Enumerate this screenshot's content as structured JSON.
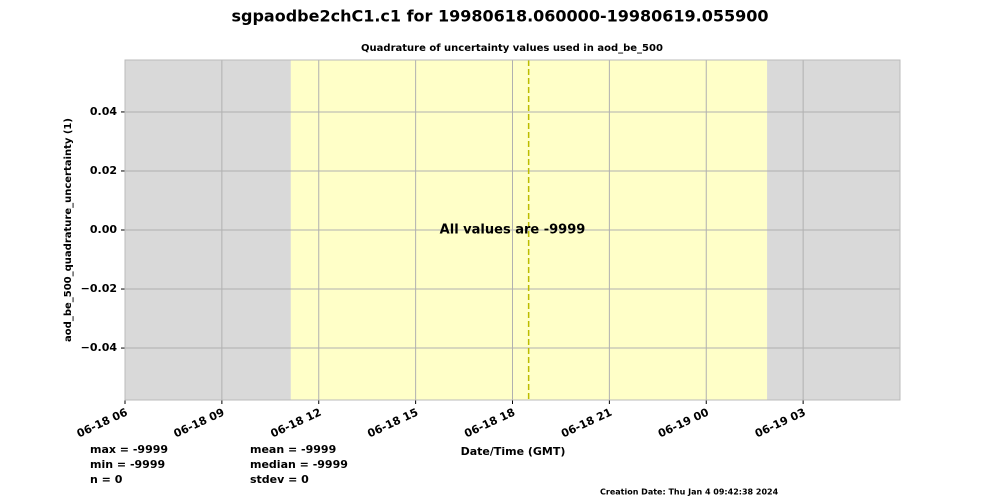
{
  "chart_data": {
    "type": "line",
    "title": "sgpaodbe2chC1.c1 for 19980618.060000-19980619.055900",
    "subtitle": "Quadrature of uncertainty values used in aod_be_500",
    "xlabel": "Date/Time (GMT)",
    "ylabel": "aod_be_500_quadrature_uncertainty (1)",
    "annotation": "All values are -9999",
    "series": [],
    "xlim": [
      "06-18 06:00",
      "06-19 06:00"
    ],
    "xticks": [
      {
        "value": "06-18 06:00",
        "label": "06-18 06"
      },
      {
        "value": "06-18 09:00",
        "label": "06-18 09"
      },
      {
        "value": "06-18 12:00",
        "label": "06-18 12"
      },
      {
        "value": "06-18 15:00",
        "label": "06-18 15"
      },
      {
        "value": "06-18 18:00",
        "label": "06-18 18"
      },
      {
        "value": "06-18 21:00",
        "label": "06-18 21"
      },
      {
        "value": "06-19 00:00",
        "label": "06-19 00"
      },
      {
        "value": "06-19 03:00",
        "label": "06-19 03"
      }
    ],
    "ylim": [
      -0.0576,
      0.0576
    ],
    "yticks": [
      {
        "value": -0.04,
        "label": "−0.04"
      },
      {
        "value": -0.02,
        "label": "−0.02"
      },
      {
        "value": 0,
        "label": "0.00"
      },
      0.02,
      0.04
    ],
    "grid": true,
    "background_color": "#d9d9d9",
    "shaded_regions": [
      {
        "start": "06-18 11:08",
        "end": "06-19 01:53",
        "color": "#ffffc8"
      }
    ],
    "vertical_lines": [
      {
        "x": "06-18 18:30",
        "color": "#bcbc00"
      }
    ],
    "stats": [
      [
        "max = -9999",
        "min = -9999",
        "n = 0"
      ],
      [
        "mean = -9999",
        "median = -9999",
        "stdev = 0"
      ]
    ],
    "footer": "Creation Date: Thu Jan  4 09:42:38 2024"
  }
}
